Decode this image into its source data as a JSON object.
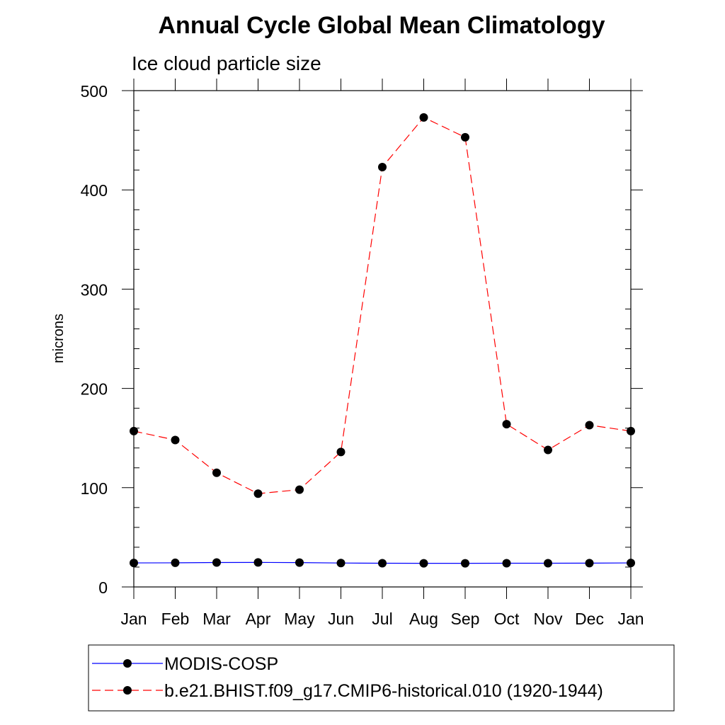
{
  "chart_data": {
    "type": "line",
    "title": "Annual Cycle Global Mean Climatology",
    "subtitle": "Ice cloud particle size",
    "xlabel": "",
    "ylabel": "microns",
    "categories": [
      "Jan",
      "Feb",
      "Mar",
      "Apr",
      "May",
      "Jun",
      "Jul",
      "Aug",
      "Sep",
      "Oct",
      "Nov",
      "Dec",
      "Jan"
    ],
    "ylim": [
      0,
      500
    ],
    "yticks": [
      0,
      100,
      200,
      300,
      400,
      500
    ],
    "grid": false,
    "legend_position": "bottom",
    "series": [
      {
        "name": "MODIS-COSP",
        "color": "#0000ff",
        "line_style": "solid",
        "marker": "filled-circle",
        "values": [
          24.2,
          24.3,
          24.6,
          24.7,
          24.5,
          24.1,
          23.9,
          23.8,
          23.8,
          23.9,
          23.9,
          24.0,
          24.2
        ]
      },
      {
        "name": "b.e21.BHIST.f09_g17.CMIP6-historical.010 (1920-1944)",
        "color": "#ff0000",
        "line_style": "dashed",
        "marker": "filled-circle",
        "values": [
          157,
          148,
          115,
          94,
          98,
          136,
          423,
          473,
          453,
          164,
          138,
          163,
          157
        ]
      }
    ]
  }
}
